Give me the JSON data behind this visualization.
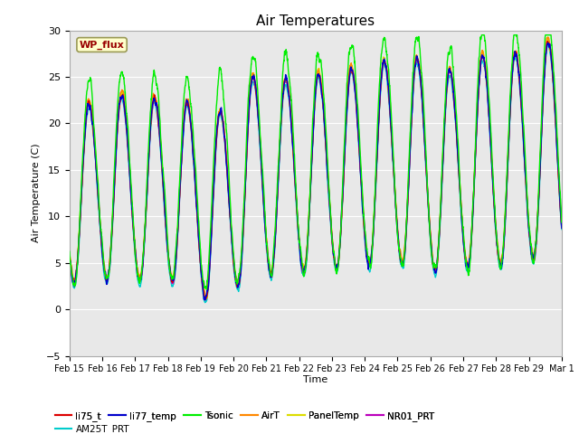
{
  "title": "Air Temperatures",
  "xlabel": "Time",
  "ylabel": "Air Temperature (C)",
  "ylim": [
    -5,
    30
  ],
  "yticks": [
    -5,
    0,
    5,
    10,
    15,
    20,
    25,
    30
  ],
  "xtick_labels": [
    "Feb 15",
    "Feb 16",
    "Feb 17",
    "Feb 18",
    "Feb 19",
    "Feb 20",
    "Feb 21",
    "Feb 22",
    "Feb 23",
    "Feb 24",
    "Feb 25",
    "Feb 26",
    "Feb 27",
    "Feb 28",
    "Feb 29",
    "Mar 1"
  ],
  "annotation_text": "WP_flux",
  "series_colors": {
    "li75_t": "#dd0000",
    "li77_temp": "#0000cc",
    "Tsonic": "#00ee00",
    "AirT": "#ff8800",
    "PanelTemp": "#dddd00",
    "NR01_PRT": "#bb00bb",
    "AM25T_PRT": "#00cccc"
  },
  "fig_facecolor": "#ffffff",
  "ax_facecolor": "#e8e8e8",
  "grid_color": "#ffffff",
  "n_points": 2880,
  "seed": 12345
}
